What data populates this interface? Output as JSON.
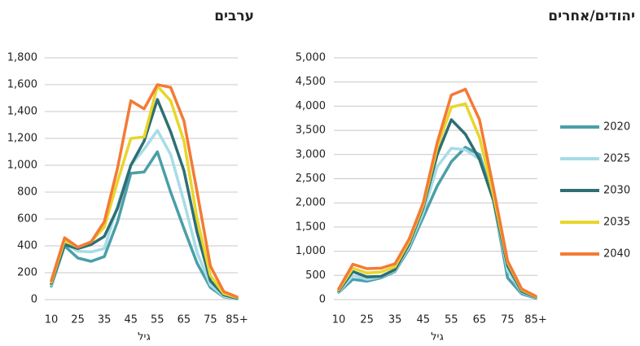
{
  "chart_data": [
    {
      "type": "line",
      "title": "ערבים",
      "x_label": "גיל",
      "categories": [
        "10",
        null,
        "25",
        null,
        "35",
        null,
        "45",
        null,
        "55",
        null,
        "65",
        null,
        "75",
        null,
        "85+"
      ],
      "ylim": [
        0,
        1800
      ],
      "yticks": [
        0,
        200,
        400,
        600,
        800,
        {
          "value": 1000,
          "label": "1,000"
        },
        {
          "value": 1200,
          "label": "1,200"
        },
        {
          "value": 1400,
          "label": "1,400"
        },
        {
          "value": 1600,
          "label": "1,600"
        },
        {
          "value": 1800,
          "label": "1,800"
        }
      ],
      "grid": true,
      "series": [
        {
          "color": "#4a9fa8",
          "values": [
            100,
            400,
            310,
            285,
            320,
            580,
            940,
            950,
            1100,
            800,
            530,
            270,
            90,
            20,
            5
          ]
        },
        {
          "color": "#a6dce8",
          "values": [
            110,
            420,
            360,
            355,
            380,
            700,
            1000,
            1120,
            1260,
            1080,
            730,
            350,
            110,
            25,
            5
          ]
        },
        {
          "color": "#2e6f73",
          "values": [
            120,
            410,
            380,
            410,
            470,
            680,
            1000,
            1180,
            1490,
            1250,
            960,
            500,
            140,
            35,
            10
          ]
        },
        {
          "color": "#e8d62a",
          "values": [
            130,
            440,
            390,
            430,
            540,
            880,
            1200,
            1210,
            1590,
            1480,
            1180,
            600,
            180,
            45,
            15
          ]
        },
        {
          "color": "#f47a35",
          "values": [
            140,
            460,
            390,
            430,
            580,
            980,
            1480,
            1420,
            1600,
            1580,
            1330,
            800,
            250,
            60,
            20
          ]
        }
      ]
    },
    {
      "type": "line",
      "title": "יהודים/אחרים",
      "x_label": "גיל",
      "categories": [
        "10",
        null,
        "25",
        null,
        "35",
        null,
        "45",
        null,
        "55",
        null,
        "65",
        null,
        "75",
        null,
        "85+"
      ],
      "ylim": [
        0,
        5000
      ],
      "yticks": [
        0,
        500,
        {
          "value": 1000,
          "label": "1,000"
        },
        {
          "value": 1500,
          "label": "1,500"
        },
        {
          "value": 2000,
          "label": "2,000"
        },
        {
          "value": 2500,
          "label": "2,500"
        },
        {
          "value": 3000,
          "label": "3,000"
        },
        {
          "value": 3500,
          "label": "3,500"
        },
        {
          "value": 4000,
          "label": "4,000"
        },
        {
          "value": 4500,
          "label": "4,500"
        },
        {
          "value": 5000,
          "label": "5,000"
        }
      ],
      "grid": true,
      "series": [
        {
          "name": "2020",
          "color": "#4a9fa8",
          "values": [
            150,
            420,
            380,
            450,
            580,
            1050,
            1700,
            2350,
            2850,
            3150,
            3000,
            2050,
            450,
            120,
            30
          ]
        },
        {
          "name": "2025",
          "color": "#a6dce8",
          "values": [
            160,
            500,
            420,
            470,
            600,
            1100,
            1800,
            2750,
            3130,
            3100,
            2900,
            2050,
            600,
            150,
            40
          ]
        },
        {
          "name": "2030",
          "color": "#2e6f73",
          "values": [
            180,
            580,
            470,
            480,
            620,
            1150,
            1900,
            3000,
            3720,
            3420,
            2900,
            2050,
            700,
            170,
            50
          ]
        },
        {
          "name": "2035",
          "color": "#e8d62a",
          "values": [
            200,
            650,
            550,
            570,
            680,
            1200,
            1950,
            3150,
            3980,
            4050,
            3350,
            2150,
            770,
            200,
            60
          ]
        },
        {
          "name": "2040",
          "color": "#f47a35",
          "values": [
            220,
            730,
            640,
            650,
            740,
            1250,
            2000,
            3250,
            4230,
            4350,
            3720,
            2300,
            800,
            220,
            70
          ]
        }
      ]
    }
  ]
}
